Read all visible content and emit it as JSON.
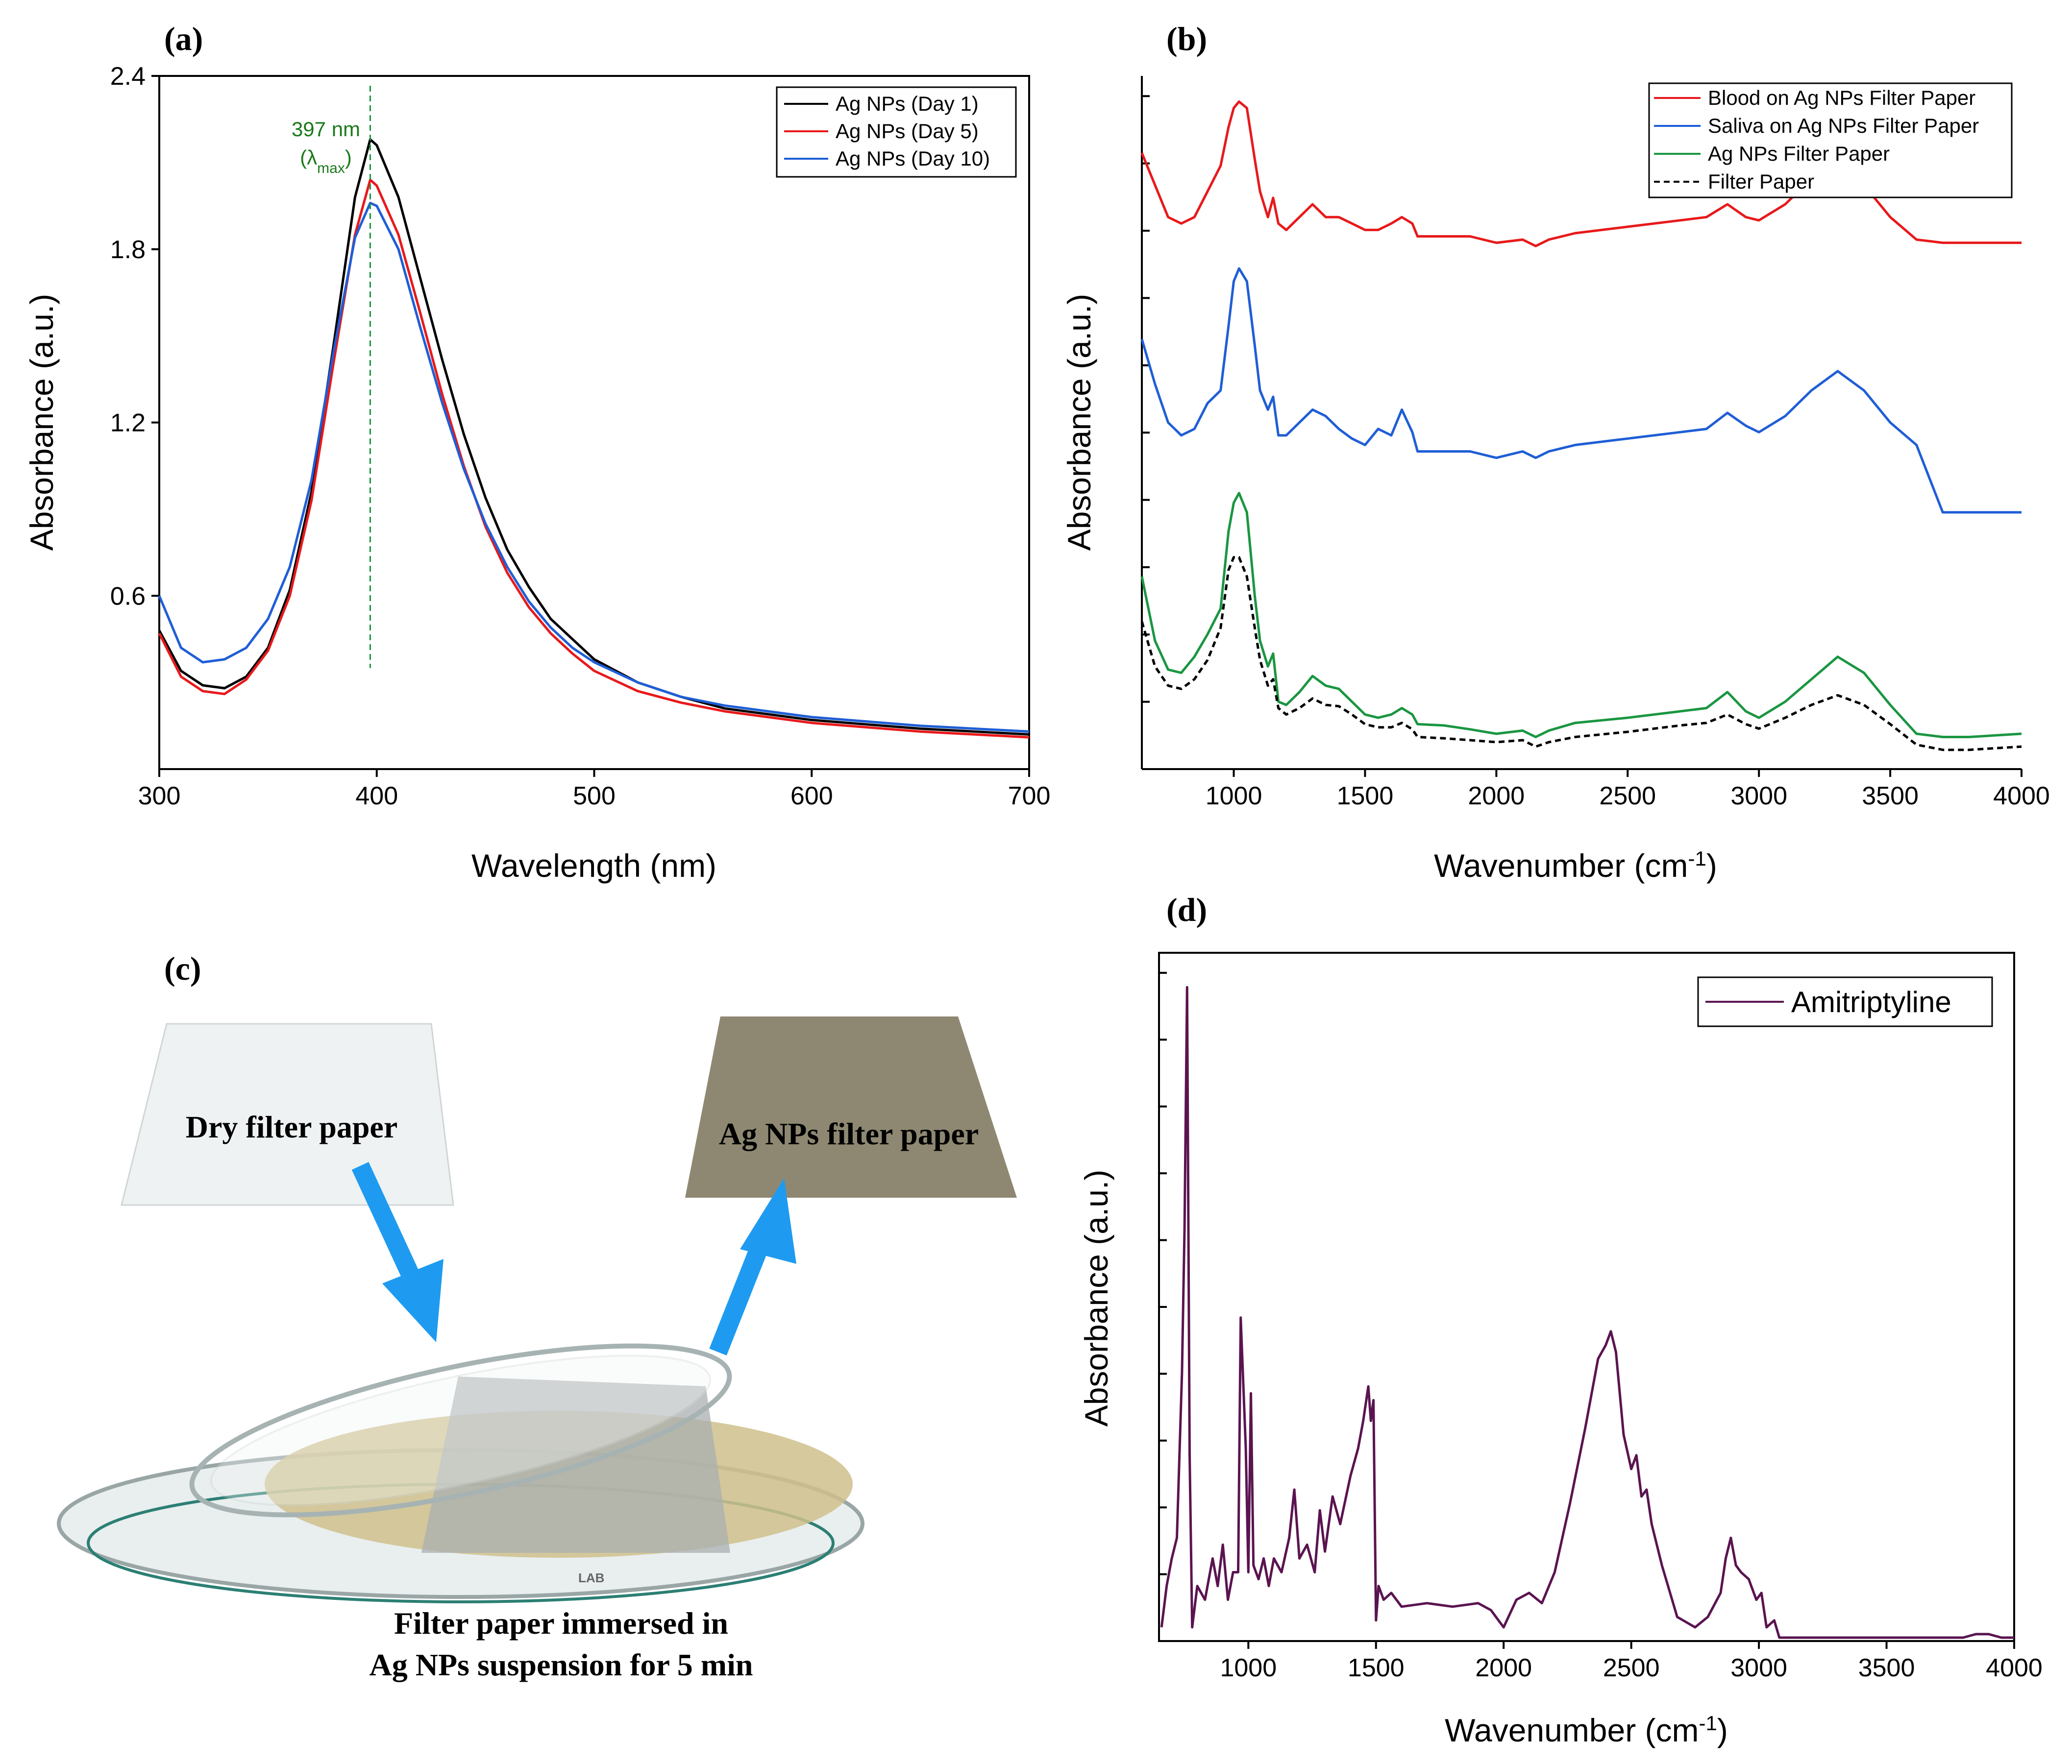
{
  "panel_labels": {
    "a": "(a)",
    "b": "(b)",
    "c": "(c)",
    "d": "(d)"
  },
  "chart_data": [
    {
      "id": "a",
      "type": "line",
      "xlabel": "Wavelength (nm)",
      "ylabel": "Absorbance (a.u.)",
      "xlim": [
        300,
        700
      ],
      "ylim": [
        0.0,
        2.4
      ],
      "xticks": [
        300,
        400,
        500,
        600,
        700
      ],
      "yticks": [
        0.6,
        1.2,
        1.8,
        2.4
      ],
      "annotation": {
        "x": 397,
        "line1": "397 nm",
        "line2": "(λmax)",
        "line2_base": "(λ",
        "line2_sub": "max",
        "line2_end": ")"
      },
      "legend_position": "top-right",
      "series": [
        {
          "name": "Ag NPs (Day 1)",
          "color": "#000000",
          "x": [
            300,
            310,
            320,
            330,
            340,
            350,
            360,
            370,
            380,
            390,
            397,
            400,
            410,
            420,
            430,
            440,
            450,
            460,
            470,
            480,
            490,
            500,
            520,
            540,
            560,
            580,
            600,
            650,
            700
          ],
          "y": [
            0.48,
            0.34,
            0.29,
            0.28,
            0.32,
            0.42,
            0.62,
            0.96,
            1.46,
            1.98,
            2.18,
            2.16,
            1.98,
            1.7,
            1.42,
            1.16,
            0.94,
            0.76,
            0.63,
            0.52,
            0.45,
            0.38,
            0.3,
            0.25,
            0.21,
            0.19,
            0.17,
            0.14,
            0.12
          ]
        },
        {
          "name": "Ag NPs (Day 5)",
          "color": "#e8191b",
          "x": [
            300,
            310,
            320,
            330,
            340,
            350,
            360,
            370,
            380,
            390,
            397,
            400,
            410,
            420,
            430,
            440,
            450,
            460,
            470,
            480,
            490,
            500,
            520,
            540,
            560,
            580,
            600,
            650,
            700
          ],
          "y": [
            0.47,
            0.32,
            0.27,
            0.26,
            0.31,
            0.41,
            0.6,
            0.93,
            1.4,
            1.85,
            2.04,
            2.02,
            1.85,
            1.58,
            1.3,
            1.05,
            0.84,
            0.68,
            0.56,
            0.47,
            0.4,
            0.34,
            0.27,
            0.23,
            0.2,
            0.18,
            0.16,
            0.13,
            0.11
          ]
        },
        {
          "name": "Ag NPs (Day 10)",
          "color": "#1f5ed6",
          "x": [
            300,
            310,
            320,
            330,
            340,
            350,
            360,
            370,
            380,
            390,
            397,
            400,
            410,
            420,
            430,
            440,
            450,
            460,
            470,
            480,
            490,
            500,
            520,
            540,
            560,
            580,
            600,
            650,
            700
          ],
          "y": [
            0.6,
            0.42,
            0.37,
            0.38,
            0.42,
            0.52,
            0.7,
            1.0,
            1.44,
            1.84,
            1.96,
            1.95,
            1.8,
            1.53,
            1.27,
            1.04,
            0.85,
            0.7,
            0.58,
            0.49,
            0.42,
            0.37,
            0.3,
            0.25,
            0.22,
            0.2,
            0.18,
            0.15,
            0.13
          ]
        }
      ]
    },
    {
      "id": "b",
      "type": "line",
      "xlabel": "Wavenumber (cm-1)",
      "xlabel_base": "Wavenumber (cm",
      "xlabel_sup": "-1",
      "xlabel_end": ")",
      "ylabel": "Absorbance (a.u.)",
      "xlim": [
        650,
        4000
      ],
      "ylim": [
        0,
        10.8
      ],
      "xticks": [
        1000,
        1500,
        2000,
        2500,
        3000,
        3500,
        4000
      ],
      "legend_position": "top-right",
      "series": [
        {
          "name": "Blood on Ag NPs Filter Paper",
          "color": "#e8191b",
          "dashed": false,
          "x": [
            650,
            700,
            750,
            800,
            850,
            900,
            950,
            980,
            1000,
            1020,
            1050,
            1080,
            1100,
            1130,
            1150,
            1170,
            1200,
            1250,
            1300,
            1350,
            1400,
            1450,
            1500,
            1550,
            1600,
            1640,
            1680,
            1700,
            1800,
            1900,
            2000,
            2100,
            2150,
            2200,
            2300,
            2500,
            2700,
            2800,
            2880,
            2950,
            3000,
            3100,
            3200,
            3300,
            3400,
            3500,
            3600,
            3700,
            3800,
            4000
          ],
          "y": [
            9.6,
            9.1,
            8.6,
            8.5,
            8.6,
            9.0,
            9.4,
            10.0,
            10.3,
            10.4,
            10.3,
            9.5,
            9.0,
            8.6,
            8.9,
            8.5,
            8.4,
            8.6,
            8.8,
            8.6,
            8.6,
            8.5,
            8.4,
            8.4,
            8.5,
            8.6,
            8.5,
            8.3,
            8.3,
            8.3,
            8.2,
            8.25,
            8.15,
            8.25,
            8.35,
            8.45,
            8.55,
            8.6,
            8.8,
            8.6,
            8.55,
            8.8,
            9.2,
            9.4,
            9.1,
            8.6,
            8.25,
            8.2,
            8.2,
            8.2
          ]
        },
        {
          "name": "Saliva on Ag NPs Filter Paper",
          "color": "#1f5ed6",
          "dashed": false,
          "x": [
            650,
            700,
            750,
            800,
            850,
            900,
            950,
            980,
            1000,
            1020,
            1050,
            1080,
            1100,
            1130,
            1150,
            1170,
            1200,
            1250,
            1300,
            1350,
            1400,
            1450,
            1500,
            1550,
            1600,
            1640,
            1680,
            1700,
            1800,
            1900,
            2000,
            2100,
            2150,
            2200,
            2300,
            2500,
            2700,
            2800,
            2880,
            2950,
            3000,
            3100,
            3200,
            3300,
            3400,
            3500,
            3600,
            3700,
            3800,
            4000
          ],
          "y": [
            6.7,
            6.0,
            5.4,
            5.2,
            5.3,
            5.7,
            5.9,
            6.9,
            7.6,
            7.8,
            7.6,
            6.6,
            5.9,
            5.6,
            5.8,
            5.2,
            5.2,
            5.4,
            5.6,
            5.5,
            5.3,
            5.15,
            5.05,
            5.3,
            5.2,
            5.6,
            5.25,
            4.95,
            4.95,
            4.95,
            4.85,
            4.95,
            4.85,
            4.95,
            5.05,
            5.15,
            5.25,
            5.3,
            5.55,
            5.35,
            5.25,
            5.5,
            5.9,
            6.2,
            5.9,
            5.4,
            5.05,
            4.0,
            4.0,
            4.0
          ]
        },
        {
          "name": "Ag NPs Filter Paper",
          "color": "#1a9641",
          "dashed": false,
          "x": [
            650,
            700,
            750,
            800,
            850,
            900,
            950,
            980,
            1000,
            1020,
            1050,
            1080,
            1100,
            1130,
            1150,
            1170,
            1200,
            1250,
            1300,
            1350,
            1400,
            1450,
            1500,
            1550,
            1600,
            1640,
            1680,
            1700,
            1800,
            1900,
            2000,
            2100,
            2150,
            2200,
            2300,
            2500,
            2700,
            2800,
            2880,
            2950,
            3000,
            3100,
            3200,
            3300,
            3400,
            3500,
            3600,
            3700,
            3800,
            4000
          ],
          "y": [
            3.0,
            2.0,
            1.55,
            1.5,
            1.75,
            2.1,
            2.5,
            3.7,
            4.15,
            4.3,
            4.0,
            2.7,
            2.0,
            1.6,
            1.8,
            1.05,
            1.0,
            1.2,
            1.45,
            1.3,
            1.25,
            1.05,
            0.85,
            0.8,
            0.85,
            0.95,
            0.85,
            0.7,
            0.68,
            0.62,
            0.55,
            0.6,
            0.5,
            0.6,
            0.72,
            0.8,
            0.9,
            0.95,
            1.2,
            0.9,
            0.8,
            1.05,
            1.4,
            1.75,
            1.5,
            1.0,
            0.55,
            0.5,
            0.5,
            0.55
          ]
        },
        {
          "name": "Filter Paper",
          "color": "#000000",
          "dashed": true,
          "x": [
            650,
            700,
            750,
            800,
            850,
            900,
            950,
            980,
            1000,
            1020,
            1050,
            1080,
            1100,
            1130,
            1150,
            1170,
            1200,
            1250,
            1300,
            1350,
            1400,
            1450,
            1500,
            1550,
            1600,
            1640,
            1680,
            1700,
            1800,
            1900,
            2000,
            2100,
            2150,
            2200,
            2300,
            2500,
            2700,
            2800,
            2880,
            2950,
            3000,
            3100,
            3200,
            3300,
            3400,
            3500,
            3600,
            3700,
            3800,
            4000
          ],
          "y": [
            2.3,
            1.6,
            1.3,
            1.25,
            1.4,
            1.7,
            2.2,
            3.1,
            3.3,
            3.3,
            3.0,
            2.2,
            1.7,
            1.3,
            1.4,
            0.95,
            0.85,
            0.95,
            1.1,
            1.0,
            0.98,
            0.85,
            0.7,
            0.65,
            0.65,
            0.72,
            0.62,
            0.5,
            0.48,
            0.45,
            0.42,
            0.45,
            0.35,
            0.42,
            0.5,
            0.58,
            0.68,
            0.72,
            0.85,
            0.7,
            0.63,
            0.8,
            1.0,
            1.15,
            1.0,
            0.7,
            0.38,
            0.3,
            0.3,
            0.35
          ]
        }
      ]
    },
    {
      "id": "d",
      "type": "line",
      "xlabel": "Wavenumber (cm-1)",
      "xlabel_base": "Wavenumber (cm",
      "xlabel_sup": "-1",
      "xlabel_end": ")",
      "ylabel": "Absorbance (a.u.)",
      "xlim": [
        650,
        4000
      ],
      "ylim": [
        0,
        10
      ],
      "xticks": [
        1000,
        1500,
        2000,
        2500,
        3000,
        3500,
        4000
      ],
      "legend_position": "top-right",
      "series": [
        {
          "name": "Amitriptyline",
          "color": "#5a1450",
          "x": [
            660,
            680,
            700,
            720,
            740,
            750,
            760,
            770,
            780,
            800,
            830,
            860,
            880,
            900,
            920,
            940,
            960,
            970,
            990,
            1000,
            1010,
            1020,
            1040,
            1060,
            1080,
            1100,
            1130,
            1160,
            1180,
            1200,
            1230,
            1260,
            1280,
            1300,
            1330,
            1360,
            1400,
            1430,
            1450,
            1470,
            1480,
            1490,
            1500,
            1510,
            1530,
            1560,
            1600,
            1700,
            1800,
            1900,
            1950,
            2000,
            2050,
            2100,
            2150,
            2200,
            2260,
            2320,
            2370,
            2400,
            2420,
            2440,
            2470,
            2500,
            2520,
            2540,
            2560,
            2580,
            2620,
            2680,
            2750,
            2800,
            2850,
            2870,
            2890,
            2910,
            2930,
            2960,
            2990,
            3010,
            3030,
            3060,
            3080,
            3200,
            3400,
            3600,
            3800,
            3850,
            3900,
            3950,
            4000
          ],
          "y": [
            0.2,
            0.8,
            1.2,
            1.5,
            3.9,
            6.0,
            9.5,
            2.7,
            0.2,
            0.8,
            0.6,
            1.2,
            0.8,
            1.4,
            0.6,
            1.0,
            1.0,
            4.7,
            2.8,
            1.0,
            3.6,
            1.1,
            0.9,
            1.2,
            0.8,
            1.2,
            1.0,
            1.5,
            2.2,
            1.2,
            1.4,
            1.0,
            1.9,
            1.3,
            2.1,
            1.7,
            2.4,
            2.8,
            3.2,
            3.7,
            3.2,
            3.5,
            0.3,
            0.8,
            0.6,
            0.7,
            0.5,
            0.55,
            0.5,
            0.55,
            0.45,
            0.2,
            0.6,
            0.7,
            0.55,
            1.0,
            2.0,
            3.1,
            4.1,
            4.3,
            4.5,
            4.2,
            3.0,
            2.5,
            2.7,
            2.1,
            2.2,
            1.7,
            1.1,
            0.35,
            0.2,
            0.35,
            0.7,
            1.2,
            1.5,
            1.1,
            1.0,
            0.9,
            0.6,
            0.7,
            0.2,
            0.3,
            0.05,
            0.05,
            0.05,
            0.05,
            0.05,
            0.1,
            0.1,
            0.05,
            0.05
          ]
        }
      ]
    }
  ],
  "panel_c": {
    "dry_label": "Dry filter paper",
    "ag_label": "Ag NPs filter paper",
    "caption_line1": "Filter paper immersed in",
    "caption_line2": "Ag NPs suspension for 5 min",
    "logo_text": "LAB"
  }
}
